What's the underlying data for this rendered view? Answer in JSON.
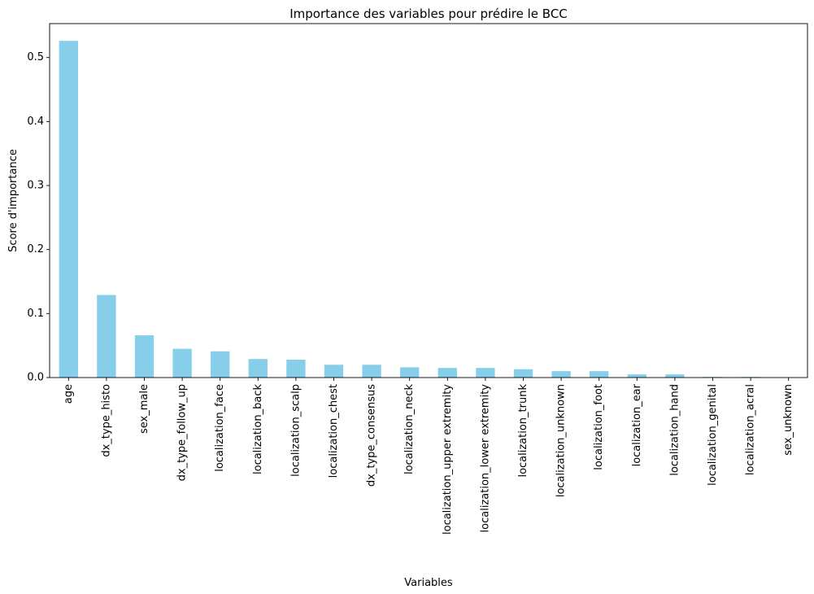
{
  "chart_data": {
    "type": "bar",
    "title": "Importance des variables pour prédire le BCC",
    "xlabel": "Variables",
    "ylabel": "Score d'importance",
    "ylim": [
      0,
      0.553
    ],
    "yticks": [
      0.0,
      0.1,
      0.2,
      0.3,
      0.4,
      0.5
    ],
    "ytick_labels": [
      "0.0",
      "0.1",
      "0.2",
      "0.3",
      "0.4",
      "0.5"
    ],
    "grid": false,
    "legend": "none",
    "bar_color": "#87CEEB",
    "categories": [
      "age",
      "dx_type_histo",
      "sex_male",
      "dx_type_follow_up",
      "localization_face",
      "localization_back",
      "localization_scalp",
      "localization_chest",
      "dx_type_consensus",
      "localization_neck",
      "localization_upper extremity",
      "localization_lower extremity",
      "localization_trunk",
      "localization_unknown",
      "localization_foot",
      "localization_ear",
      "localization_hand",
      "localization_genital",
      "localization_acral",
      "sex_unknown"
    ],
    "values": [
      0.526,
      0.129,
      0.066,
      0.045,
      0.041,
      0.029,
      0.028,
      0.02,
      0.02,
      0.016,
      0.015,
      0.015,
      0.013,
      0.01,
      0.01,
      0.005,
      0.005,
      0.001,
      0.001,
      0.0
    ]
  }
}
